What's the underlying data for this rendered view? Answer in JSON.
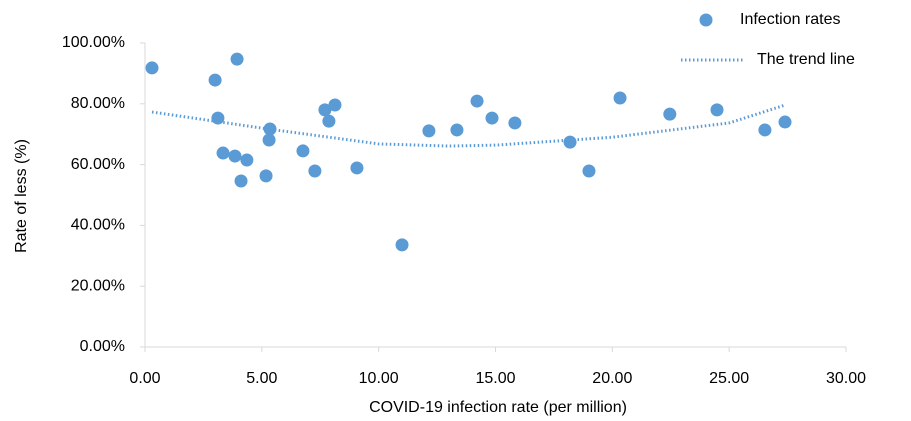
{
  "chart_data": {
    "type": "scatter",
    "xlabel": "COVID-19 infection rate (per million)",
    "ylabel": "Rate of less (%)",
    "xlim": [
      0,
      30
    ],
    "xticks": [
      {
        "value": 0,
        "label": "0.00"
      },
      {
        "value": 5,
        "label": "5.00"
      },
      {
        "value": 10,
        "label": "10.00"
      },
      {
        "value": 15,
        "label": "15.00"
      },
      {
        "value": 20,
        "label": "20.00"
      },
      {
        "value": 25,
        "label": "25.00"
      },
      {
        "value": 30,
        "label": "30.00"
      }
    ],
    "ylim": [
      0,
      100
    ],
    "yticks": [
      {
        "value": 0,
        "label": "0.00%"
      },
      {
        "value": 20,
        "label": "20.00%"
      },
      {
        "value": 40,
        "label": "40.00%"
      },
      {
        "value": 60,
        "label": "60.00%"
      },
      {
        "value": 80,
        "label": "80.00%"
      },
      {
        "value": 100,
        "label": "100.00%"
      }
    ],
    "legend": "top-right",
    "series": [
      {
        "name": "Infection rates",
        "color": "#5b9bd5",
        "style": "markers",
        "x": [
          0.3,
          3.0,
          3.12,
          3.94,
          3.34,
          3.85,
          4.11,
          4.36,
          5.35,
          5.31,
          5.18,
          6.76,
          7.27,
          7.7,
          7.87,
          8.13,
          9.07,
          11.0,
          12.15,
          13.35,
          14.21,
          14.85,
          15.83,
          18.19,
          19.0,
          20.33,
          22.46,
          24.48,
          26.53,
          27.39
        ],
        "values": [
          91.8,
          87.8,
          75.3,
          94.7,
          63.8,
          62.8,
          54.6,
          61.5,
          71.7,
          68.1,
          56.3,
          64.5,
          57.9,
          78.0,
          74.3,
          79.6,
          58.9,
          33.6,
          71.1,
          71.4,
          80.9,
          75.3,
          73.7,
          67.4,
          57.9,
          81.9,
          76.6,
          78.0,
          71.4,
          74.0
        ]
      },
      {
        "name": "The trend line",
        "color": "#5b9bd5",
        "style": "dotted",
        "x": [
          0.3,
          5,
          10,
          13,
          15,
          20,
          25,
          27.4
        ],
        "values": [
          77.3,
          72.0,
          66.8,
          66.1,
          66.4,
          69.0,
          73.7,
          79.6
        ]
      }
    ]
  }
}
